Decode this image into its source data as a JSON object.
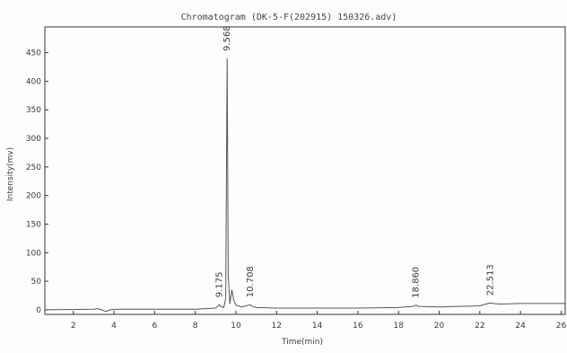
{
  "chart_data": {
    "type": "line",
    "title": "Chromatogram (DK-5-F(202915) 150326.adv)",
    "xlabel": "Time(min)",
    "ylabel": "Intensity(mv)",
    "xlim": [
      0.6,
      26.2
    ],
    "ylim": [
      -8,
      495
    ],
    "xticks": [
      2,
      4,
      6,
      8,
      10,
      12,
      14,
      16,
      18,
      20,
      22,
      24,
      26
    ],
    "yticks": [
      0,
      50,
      100,
      150,
      200,
      250,
      300,
      350,
      400,
      450
    ],
    "grid": false,
    "series": [
      {
        "x": [
          0.6,
          3.0,
          3.2,
          3.4,
          3.6,
          3.8,
          4.2,
          6.0,
          8.0,
          9.0,
          9.1,
          9.175,
          9.25,
          9.4,
          9.5,
          9.568,
          9.62,
          9.7,
          9.8,
          9.9,
          10.0,
          10.3,
          10.6,
          10.708,
          10.8,
          11.0,
          12.0,
          14.0,
          16.0,
          18.0,
          18.7,
          18.86,
          19.0,
          20.0,
          22.0,
          22.4,
          22.513,
          22.65,
          23.0,
          24.0,
          26.2
        ],
        "y": [
          0,
          1,
          2,
          0,
          -3,
          0,
          1,
          1,
          1,
          3,
          6,
          9,
          6,
          4,
          20,
          440,
          60,
          10,
          35,
          16,
          8,
          5,
          8,
          9,
          6,
          4,
          3,
          3,
          3,
          4,
          6,
          8,
          6,
          5,
          7,
          11,
          12,
          11,
          10,
          11,
          11
        ]
      }
    ],
    "peaks": [
      {
        "time": 9.175,
        "label": "9.175",
        "intensity": 9
      },
      {
        "time": 9.568,
        "label": "9.568",
        "intensity": 440
      },
      {
        "time": 10.708,
        "label": "10.708",
        "intensity": 9
      },
      {
        "time": 18.86,
        "label": "18.860",
        "intensity": 8
      },
      {
        "time": 22.513,
        "label": "22.513",
        "intensity": 12
      }
    ],
    "colors": {
      "trace": "#555555",
      "axis": "#333333",
      "background": "#fdfdfd"
    }
  }
}
